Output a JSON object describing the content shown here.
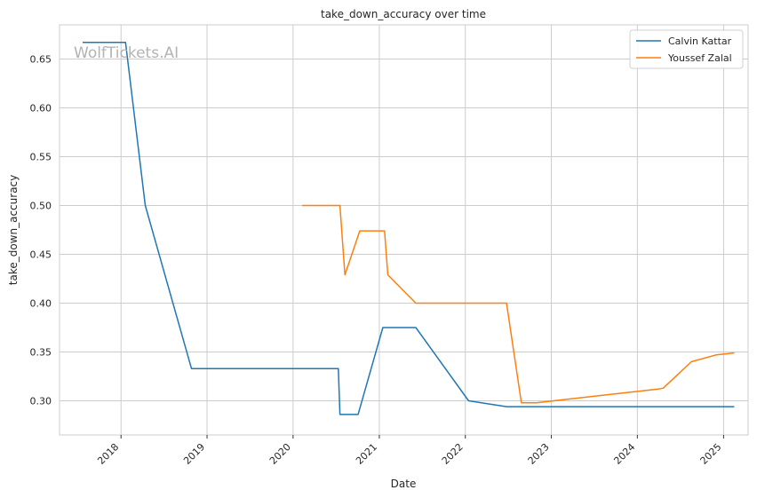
{
  "chart_data": {
    "type": "line",
    "title": "take_down_accuracy over time",
    "xlabel": "Date",
    "ylabel": "take_down_accuracy",
    "watermark": "WolfTickets.AI",
    "xlim": [
      "2017-04-15",
      "2025-04-15"
    ],
    "ylim": [
      0.265,
      0.685
    ],
    "x_ticks": [
      "2018-01-01",
      "2019-01-01",
      "2020-01-01",
      "2021-01-01",
      "2022-01-01",
      "2023-01-01",
      "2024-01-01",
      "2025-01-01"
    ],
    "x_tick_labels": [
      "2018",
      "2019",
      "2020",
      "2021",
      "2022",
      "2023",
      "2024",
      "2025"
    ],
    "y_ticks": [
      0.3,
      0.35,
      0.4,
      0.45,
      0.5,
      0.55,
      0.6,
      0.65
    ],
    "y_tick_labels": [
      "0.30",
      "0.35",
      "0.40",
      "0.45",
      "0.50",
      "0.55",
      "0.60",
      "0.65"
    ],
    "grid": true,
    "legend_position": "top-right",
    "series": [
      {
        "name": "Calvin Kattar",
        "color": "#1f77b4",
        "points": [
          [
            "2017-07-22",
            0.667
          ],
          [
            "2018-01-20",
            0.667
          ],
          [
            "2018-04-14",
            0.5
          ],
          [
            "2018-10-27",
            0.333
          ],
          [
            "2020-07-11",
            0.333
          ],
          [
            "2020-07-18",
            0.286
          ],
          [
            "2020-10-03",
            0.286
          ],
          [
            "2021-01-16",
            0.375
          ],
          [
            "2021-06-05",
            0.375
          ],
          [
            "2022-01-15",
            0.3
          ],
          [
            "2022-06-25",
            0.294
          ],
          [
            "2025-02-15",
            0.294
          ]
        ]
      },
      {
        "name": "Youssef Zalal",
        "color": "#ff7f0e",
        "points": [
          [
            "2020-02-08",
            0.5
          ],
          [
            "2020-07-18",
            0.5
          ],
          [
            "2020-08-08",
            0.429
          ],
          [
            "2020-10-10",
            0.474
          ],
          [
            "2021-01-23",
            0.474
          ],
          [
            "2021-02-06",
            0.429
          ],
          [
            "2021-06-05",
            0.4
          ],
          [
            "2022-06-25",
            0.4
          ],
          [
            "2022-08-27",
            0.298
          ],
          [
            "2022-10-29",
            0.298
          ],
          [
            "2024-03-30",
            0.312
          ],
          [
            "2024-04-20",
            0.313
          ],
          [
            "2024-08-17",
            0.34
          ],
          [
            "2024-11-30",
            0.347
          ],
          [
            "2025-02-15",
            0.349
          ]
        ]
      }
    ]
  }
}
